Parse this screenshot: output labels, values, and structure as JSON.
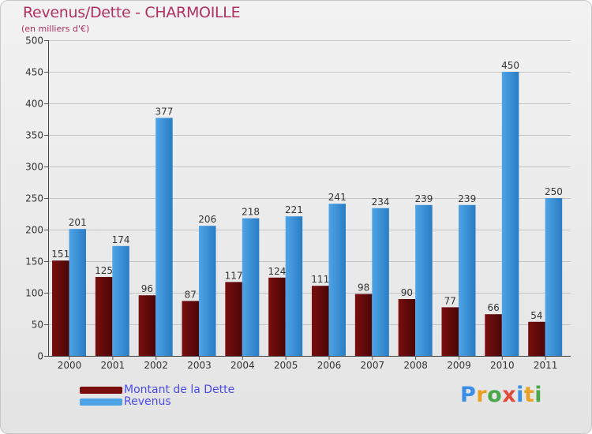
{
  "header": {
    "title": "Revenus/Dette - CHARMOILLE",
    "subtitle": "(en milliers d'€)"
  },
  "legend": {
    "debt_label": "Montant de la Dette",
    "revenue_label": "Revenus"
  },
  "logo": {
    "letters": [
      "P",
      "r",
      "o",
      "x",
      "i",
      "t",
      "i"
    ],
    "colors": [
      "#3a8ee6",
      "#e8a020",
      "#4aa84a",
      "#e04a3a",
      "#3a8ee6",
      "#e8a020",
      "#4aa84a"
    ]
  },
  "colors": {
    "debt": "#7a0e0e",
    "debt_dark": "#4a0606",
    "revenue": "#4ea4e6",
    "revenue_dark": "#2a7cc4",
    "title": "#b03060",
    "legend_text": "#4a4ae8"
  },
  "chart_data": {
    "type": "bar",
    "title": "Revenus/Dette - CHARMOILLE",
    "ylabel": "(en milliers d'€)",
    "xlabel": "",
    "ylim": [
      0,
      500
    ],
    "yticks": [
      0,
      50,
      100,
      150,
      200,
      250,
      300,
      350,
      400,
      450,
      500
    ],
    "grid": true,
    "legend_position": "bottom-left",
    "categories": [
      "2000",
      "2001",
      "2002",
      "2003",
      "2004",
      "2005",
      "2006",
      "2007",
      "2008",
      "2009",
      "2010",
      "2011"
    ],
    "series": [
      {
        "name": "Montant de la Dette",
        "values": [
          151,
          125,
          96,
          87,
          117,
          124,
          111,
          98,
          90,
          77,
          66,
          54
        ]
      },
      {
        "name": "Revenus",
        "values": [
          201,
          174,
          377,
          206,
          218,
          221,
          241,
          234,
          239,
          239,
          450,
          250
        ]
      }
    ]
  }
}
